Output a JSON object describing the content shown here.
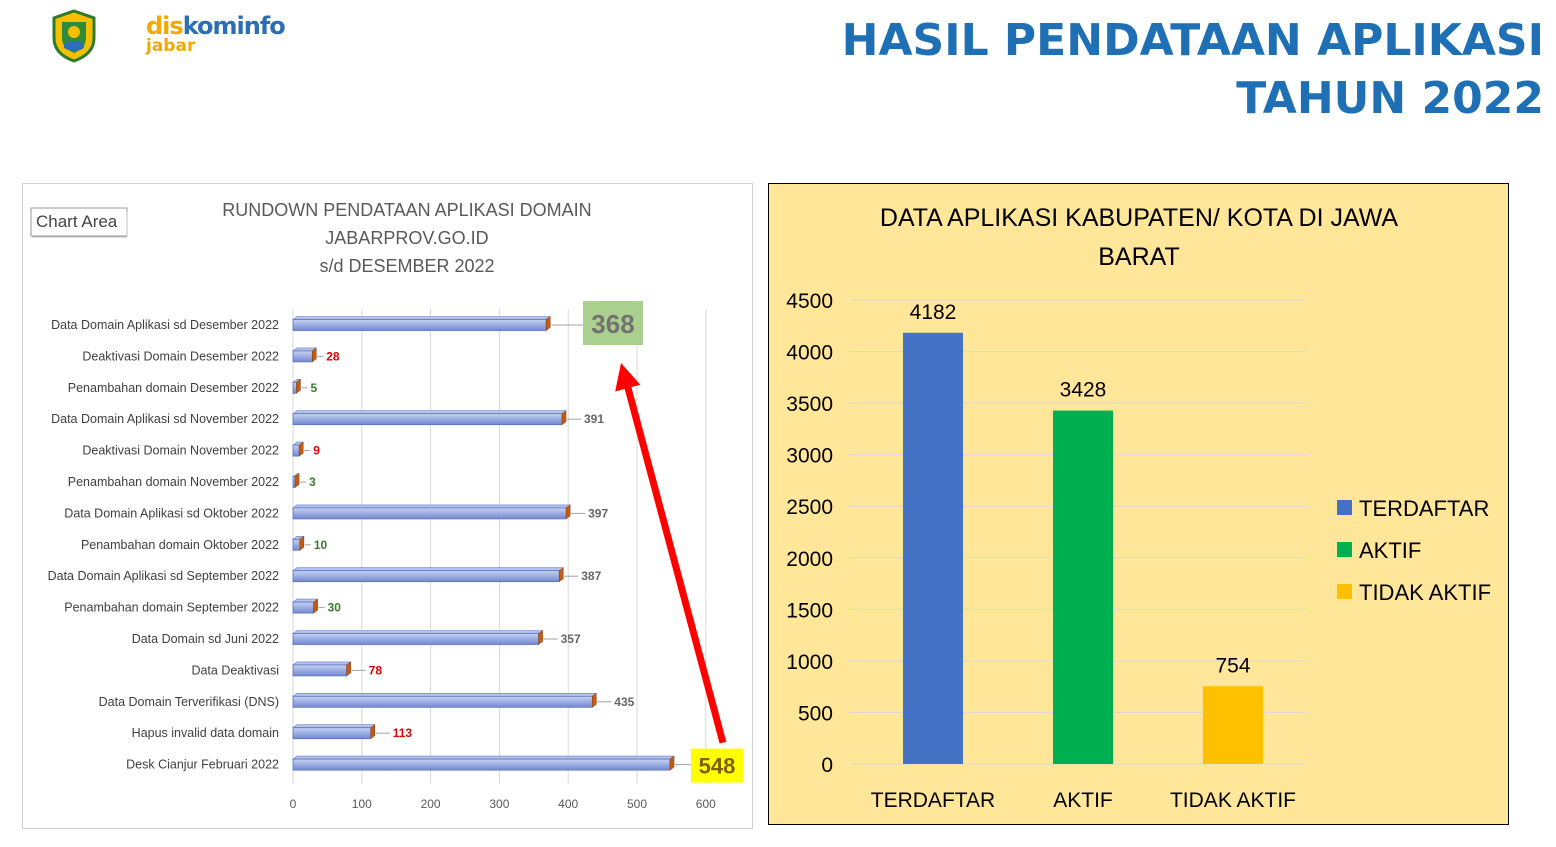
{
  "header": {
    "logo": {
      "word1": "dis",
      "word2": "kominfo",
      "word3": "jabar"
    },
    "title_line1": "HASIL PENDATAAN APLIKASI",
    "title_line2": "TAHUN 2022"
  },
  "left_panel": {
    "tooltip": "Chart Area"
  },
  "colors": {
    "bar_blue": "#8fa3dc",
    "bar_blue_dark": "#5b73c4",
    "bar_end": "#c55a11",
    "label_red": "#e00000",
    "label_green": "#3a7d2c",
    "label_gray": "#666666",
    "callout_green": "#a9d08e",
    "callout_yellow": "#ffff00",
    "arrow_red": "#ff0000",
    "terdaftar": "#4472c4",
    "aktif": "#00b050",
    "tidak_aktif": "#ffc000",
    "panel_bg": "#ffe699"
  },
  "chart_data": [
    {
      "type": "bar",
      "orientation": "horizontal",
      "title_lines": [
        "RUNDOWN PENDATAAN APLIKASI DOMAIN",
        "JABARPROV.GO.ID",
        "s/d  DESEMBER 2022"
      ],
      "categories": [
        "Data Domain Aplikasi sd Desember 2022",
        "Deaktivasi Domain Desember 2022",
        "Penambahan domain Desember 2022",
        "Data Domain Aplikasi sd November 2022",
        "Deaktivasi Domain November 2022",
        "Penambahan domain November 2022",
        "Data Domain Aplikasi sd Oktober 2022",
        "Penambahan domain Oktober 2022",
        "Data Domain Aplikasi sd September 2022",
        "Penambahan domain September 2022",
        "Data Domain sd Juni 2022",
        "Data Deaktivasi",
        "Data Domain Terverifikasi (DNS)",
        "Hapus invalid data domain",
        "Desk Cianjur Februari 2022"
      ],
      "values": [
        368,
        28,
        5,
        391,
        9,
        3,
        397,
        10,
        387,
        30,
        357,
        78,
        435,
        113,
        548
      ],
      "label_styles": [
        "callout-green",
        "red",
        "green",
        "gray",
        "red",
        "green",
        "gray",
        "green",
        "gray",
        "green",
        "gray",
        "red",
        "gray",
        "red",
        "callout-yellow"
      ],
      "xlim": [
        0,
        600
      ],
      "xticks": [
        0,
        100,
        200,
        300,
        400,
        500,
        600
      ],
      "annotation": "red arrow from 548 up to 368"
    },
    {
      "type": "bar",
      "title_lines": [
        "DATA APLIKASI KABUPATEN/ KOTA DI JAWA",
        "BARAT"
      ],
      "categories": [
        "TERDAFTAR",
        "AKTIF",
        "TIDAK AKTIF"
      ],
      "values": [
        4182,
        3428,
        754
      ],
      "legend": [
        "TERDAFTAR",
        "AKTIF",
        "TIDAK AKTIF"
      ],
      "legend_position": "right",
      "ylim": [
        0,
        4500
      ],
      "yticks": [
        0,
        500,
        1000,
        1500,
        2000,
        2500,
        3000,
        3500,
        4000,
        4500
      ],
      "grid": true
    }
  ]
}
